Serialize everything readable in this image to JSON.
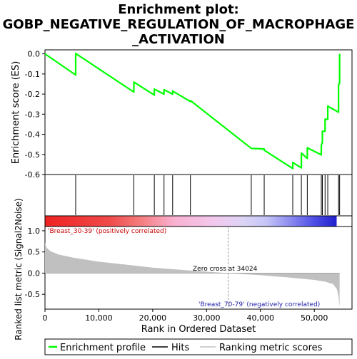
{
  "chart_data": {
    "type": "line",
    "title_lines": [
      "Enrichment plot:",
      "GOBP_NEGATIVE_REGULATION_OF_MACROPHAGE",
      "_ACTIVATION"
    ],
    "es_panel": {
      "ylabel": "Enrichment score (ES)",
      "ylim": [
        -0.6,
        0.02
      ],
      "yticks": [
        0.0,
        -0.1,
        -0.2,
        -0.3,
        -0.4,
        -0.5,
        -0.6
      ],
      "ytick_labels": [
        "0.0",
        "-0.1",
        "-0.2",
        "-0.3",
        "-0.4",
        "-0.5",
        "-0.6"
      ],
      "line_color": "#00ff00",
      "points": [
        [
          0,
          0.0
        ],
        [
          5700,
          -0.105
        ],
        [
          5700,
          0.002
        ],
        [
          16500,
          -0.19
        ],
        [
          16500,
          -0.14
        ],
        [
          20300,
          -0.205
        ],
        [
          20300,
          -0.175
        ],
        [
          22100,
          -0.2
        ],
        [
          22100,
          -0.178
        ],
        [
          23700,
          -0.2
        ],
        [
          23700,
          -0.185
        ],
        [
          27000,
          -0.237
        ],
        [
          27000,
          -0.232
        ],
        [
          38300,
          -0.47
        ],
        [
          40700,
          -0.473
        ],
        [
          40700,
          -0.479
        ],
        [
          46000,
          -0.57
        ],
        [
          46000,
          -0.54
        ],
        [
          47600,
          -0.567
        ],
        [
          47600,
          -0.493
        ],
        [
          48700,
          -0.52
        ],
        [
          48700,
          -0.467
        ],
        [
          51300,
          -0.502
        ],
        [
          51300,
          -0.455
        ],
        [
          51500,
          -0.44
        ],
        [
          51500,
          -0.385
        ],
        [
          52000,
          -0.385
        ],
        [
          52000,
          -0.325
        ],
        [
          52500,
          -0.325
        ],
        [
          52500,
          -0.26
        ],
        [
          54500,
          -0.29
        ],
        [
          54500,
          -0.155
        ],
        [
          54700,
          -0.145
        ],
        [
          54700,
          0.0
        ]
      ]
    },
    "hits": [
      5700,
      16500,
      20300,
      22100,
      23700,
      27000,
      38300,
      40700,
      46000,
      47600,
      48700,
      51300,
      51500,
      52000,
      52500,
      54500,
      54700
    ],
    "ranking_panel": {
      "ylabel": "Ranked list metric (Signal2Noise)",
      "xlabel": "Rank in Ordered Dataset",
      "ylim": [
        -0.85,
        1.1
      ],
      "yticks": [
        1.0,
        0.5,
        0.0,
        -0.5
      ],
      "ytick_labels": [
        "1.0",
        "0.5",
        "0.0",
        "-0.5"
      ],
      "xlim": [
        0,
        57000
      ],
      "xticks": [
        0,
        10000,
        20000,
        30000,
        40000,
        50000
      ],
      "xtick_labels": [
        "0",
        "10,000",
        "20,000",
        "30,000",
        "40,000",
        "50,000"
      ],
      "positive_label": "'Breast_30-39' (positively correlated)",
      "negative_label": "'Breast_70-79' (negatively correlated)",
      "zero_cross_label": "Zero cross at 34024",
      "zero_cross": 34024,
      "n_genes": 54700,
      "profile": [
        [
          0,
          0.72
        ],
        [
          300,
          0.6
        ],
        [
          1000,
          0.52
        ],
        [
          2500,
          0.44
        ],
        [
          5000,
          0.37
        ],
        [
          10000,
          0.27
        ],
        [
          15000,
          0.2
        ],
        [
          20000,
          0.13
        ],
        [
          25000,
          0.08
        ],
        [
          30000,
          0.035
        ],
        [
          34024,
          0.0
        ],
        [
          40000,
          -0.05
        ],
        [
          45000,
          -0.1
        ],
        [
          50000,
          -0.16
        ],
        [
          52000,
          -0.2
        ],
        [
          53500,
          -0.26
        ],
        [
          54200,
          -0.38
        ],
        [
          54500,
          -0.55
        ],
        [
          54700,
          -0.8
        ]
      ]
    },
    "legend": [
      {
        "name": "Enrichment profile",
        "color": "#00ff00"
      },
      {
        "name": "Hits",
        "color": "#000000"
      },
      {
        "name": "Ranking metric scores",
        "color": "#c0c0c0"
      }
    ]
  }
}
